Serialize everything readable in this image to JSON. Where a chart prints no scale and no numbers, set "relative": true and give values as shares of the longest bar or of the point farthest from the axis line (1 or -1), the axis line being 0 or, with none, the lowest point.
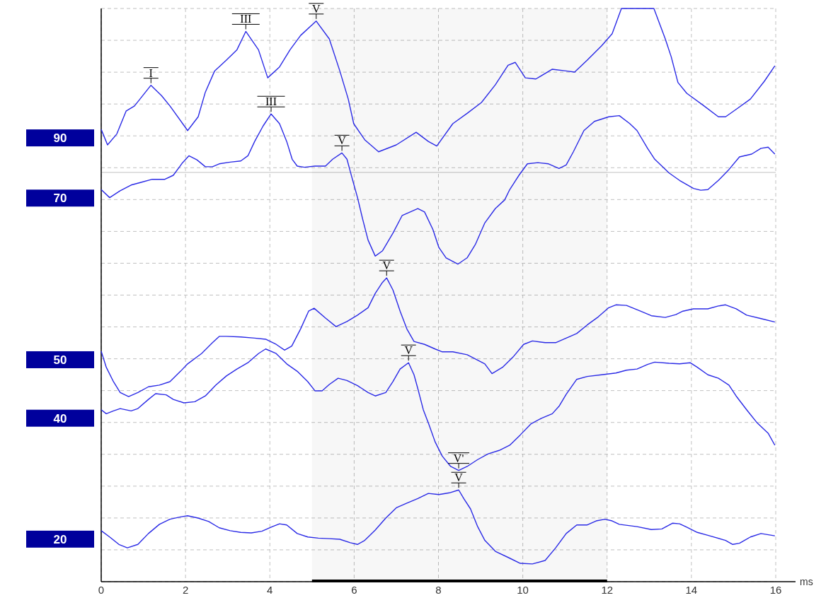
{
  "chart_data": {
    "type": "line",
    "relative": true,
    "xlabel": "ms",
    "xlim": [
      0,
      16
    ],
    "xticks": [
      0,
      2,
      4,
      6,
      8,
      10,
      12,
      14,
      16
    ],
    "grid": true,
    "legend": false,
    "marker": "none",
    "line_style": "solid",
    "series": [
      {
        "name": "90",
        "color": "#2a2ae6",
        "x": [
          0,
          0.15,
          0.37,
          0.59,
          0.79,
          1.18,
          1.43,
          1.63,
          2.05,
          2.3,
          2.47,
          2.69,
          2.97,
          3.22,
          3.43,
          3.73,
          3.95,
          4.23,
          4.48,
          4.73,
          5.1,
          5.41,
          5.66,
          5.86,
          5.99,
          6.25,
          6.58,
          7.0,
          7.47,
          7.76,
          7.96,
          8.34,
          8.68,
          9.02,
          9.35,
          9.65,
          9.82,
          10.06,
          10.31,
          10.7,
          11.03,
          11.23,
          11.53,
          11.87,
          12.12,
          12.34,
          13.11,
          13.38,
          13.52,
          13.68,
          13.89,
          14.3,
          14.64,
          14.81,
          15.06,
          15.4,
          15.73,
          15.98
        ],
        "values": [
          0.789,
          0.762,
          0.781,
          0.821,
          0.83,
          0.866,
          0.848,
          0.83,
          0.787,
          0.811,
          0.854,
          0.891,
          0.91,
          0.928,
          0.96,
          0.928,
          0.879,
          0.898,
          0.928,
          0.953,
          0.978,
          0.947,
          0.891,
          0.842,
          0.799,
          0.771,
          0.75,
          0.762,
          0.784,
          0.768,
          0.76,
          0.799,
          0.817,
          0.836,
          0.867,
          0.901,
          0.906,
          0.879,
          0.877,
          0.894,
          0.891,
          0.889,
          0.91,
          0.935,
          0.956,
          1,
          1,
          0.947,
          0.916,
          0.871,
          0.852,
          0.83,
          0.811,
          0.811,
          0.824,
          0.842,
          0.873,
          0.9
        ]
      },
      {
        "name": "70",
        "color": "#2a2ae6",
        "x": [
          0,
          0.2,
          0.45,
          0.71,
          0.96,
          1.21,
          1.51,
          1.71,
          1.93,
          2.08,
          2.27,
          2.47,
          2.64,
          2.8,
          3.06,
          3.31,
          3.48,
          3.64,
          3.84,
          4.03,
          4.23,
          4.4,
          4.53,
          4.65,
          4.82,
          5.07,
          5.32,
          5.49,
          5.71,
          5.83,
          5.94,
          6.08,
          6.2,
          6.33,
          6.5,
          6.67,
          6.92,
          7.14,
          7.51,
          7.67,
          7.87,
          8.01,
          8.18,
          8.46,
          8.68,
          8.88,
          9.1,
          9.35,
          9.57,
          9.69,
          9.91,
          10.11,
          10.36,
          10.61,
          10.86,
          11.03,
          11.2,
          11.45,
          11.7,
          12.04,
          12.29,
          12.54,
          12.71,
          12.96,
          13.13,
          13.47,
          13.72,
          14.05,
          14.22,
          14.39,
          14.64,
          14.89,
          15.14,
          15.43,
          15.65,
          15.82,
          15.98
        ],
        "values": [
          0.684,
          0.67,
          0.682,
          0.692,
          0.697,
          0.702,
          0.702,
          0.709,
          0.731,
          0.743,
          0.736,
          0.724,
          0.724,
          0.729,
          0.732,
          0.734,
          0.743,
          0.768,
          0.795,
          0.816,
          0.799,
          0.768,
          0.737,
          0.725,
          0.723,
          0.725,
          0.725,
          0.737,
          0.748,
          0.737,
          0.707,
          0.67,
          0.633,
          0.596,
          0.568,
          0.577,
          0.608,
          0.639,
          0.651,
          0.645,
          0.614,
          0.583,
          0.565,
          0.554,
          0.565,
          0.589,
          0.626,
          0.651,
          0.666,
          0.684,
          0.709,
          0.729,
          0.731,
          0.729,
          0.721,
          0.727,
          0.75,
          0.787,
          0.803,
          0.811,
          0.813,
          0.799,
          0.787,
          0.756,
          0.737,
          0.713,
          0.7,
          0.686,
          0.683,
          0.684,
          0.7,
          0.719,
          0.741,
          0.746,
          0.756,
          0.758,
          0.746
        ]
      },
      {
        "name": "50",
        "color": "#2a2ae6",
        "x": [
          0,
          0.12,
          0.29,
          0.45,
          0.65,
          0.87,
          1.12,
          1.38,
          1.63,
          1.88,
          2.05,
          2.38,
          2.64,
          2.8,
          2.97,
          3.31,
          3.64,
          3.9,
          4.15,
          4.35,
          4.52,
          4.73,
          4.92,
          5.05,
          5.32,
          5.57,
          5.83,
          6.08,
          6.33,
          6.5,
          6.67,
          6.77,
          6.92,
          7.09,
          7.25,
          7.42,
          7.67,
          7.92,
          8.09,
          8.34,
          8.68,
          9.1,
          9.27,
          9.52,
          9.77,
          10.02,
          10.23,
          10.53,
          10.78,
          11.03,
          11.28,
          11.53,
          11.79,
          12.04,
          12.21,
          12.46,
          12.79,
          13.05,
          13.38,
          13.63,
          13.8,
          14.05,
          14.39,
          14.64,
          14.81,
          15.06,
          15.31,
          15.65,
          15.98
        ],
        "values": [
          0.402,
          0.374,
          0.349,
          0.33,
          0.323,
          0.33,
          0.34,
          0.343,
          0.349,
          0.367,
          0.38,
          0.398,
          0.417,
          0.428,
          0.428,
          0.427,
          0.425,
          0.423,
          0.414,
          0.404,
          0.411,
          0.441,
          0.472,
          0.477,
          0.46,
          0.445,
          0.454,
          0.465,
          0.478,
          0.503,
          0.522,
          0.53,
          0.509,
          0.472,
          0.441,
          0.419,
          0.414,
          0.406,
          0.401,
          0.401,
          0.396,
          0.38,
          0.363,
          0.374,
          0.392,
          0.414,
          0.42,
          0.417,
          0.417,
          0.425,
          0.433,
          0.448,
          0.462,
          0.478,
          0.483,
          0.482,
          0.472,
          0.464,
          0.461,
          0.466,
          0.472,
          0.476,
          0.476,
          0.481,
          0.483,
          0.476,
          0.465,
          0.459,
          0.453
        ]
      },
      {
        "name": "40",
        "color": "#2a2ae6",
        "x": [
          0,
          0.12,
          0.29,
          0.45,
          0.71,
          0.87,
          1.12,
          1.29,
          1.54,
          1.71,
          1.96,
          2.22,
          2.47,
          2.72,
          2.97,
          3.22,
          3.48,
          3.73,
          3.9,
          4.15,
          4.4,
          4.65,
          4.9,
          5.07,
          5.24,
          5.41,
          5.62,
          5.83,
          6.08,
          6.33,
          6.5,
          6.75,
          6.92,
          7.09,
          7.29,
          7.42,
          7.51,
          7.64,
          7.77,
          7.92,
          8.09,
          8.29,
          8.48,
          8.68,
          8.93,
          9.18,
          9.44,
          9.69,
          9.94,
          10.19,
          10.44,
          10.7,
          10.86,
          11.03,
          11.28,
          11.53,
          11.87,
          12.21,
          12.46,
          12.71,
          12.96,
          13.13,
          13.47,
          13.72,
          13.97,
          14.14,
          14.39,
          14.64,
          14.89,
          15.06,
          15.31,
          15.56,
          15.82,
          15.98
        ],
        "values": [
          0.3,
          0.293,
          0.298,
          0.302,
          0.298,
          0.302,
          0.318,
          0.328,
          0.326,
          0.318,
          0.312,
          0.314,
          0.324,
          0.343,
          0.359,
          0.371,
          0.382,
          0.398,
          0.406,
          0.398,
          0.38,
          0.367,
          0.349,
          0.333,
          0.333,
          0.344,
          0.355,
          0.351,
          0.342,
          0.33,
          0.324,
          0.33,
          0.349,
          0.371,
          0.382,
          0.361,
          0.337,
          0.3,
          0.275,
          0.244,
          0.219,
          0.201,
          0.194,
          0.201,
          0.213,
          0.223,
          0.229,
          0.238,
          0.256,
          0.275,
          0.285,
          0.293,
          0.306,
          0.327,
          0.353,
          0.358,
          0.361,
          0.364,
          0.369,
          0.371,
          0.379,
          0.383,
          0.381,
          0.38,
          0.382,
          0.374,
          0.361,
          0.355,
          0.343,
          0.324,
          0.3,
          0.277,
          0.259,
          0.238
        ]
      },
      {
        "name": "20",
        "color": "#2a2ae6",
        "x": [
          0,
          0.2,
          0.42,
          0.62,
          0.87,
          1.12,
          1.38,
          1.63,
          1.88,
          2.05,
          2.3,
          2.55,
          2.8,
          3.06,
          3.31,
          3.56,
          3.81,
          4.06,
          4.23,
          4.4,
          4.65,
          4.9,
          5.15,
          5.41,
          5.66,
          5.91,
          6.08,
          6.25,
          6.5,
          6.75,
          7.0,
          7.25,
          7.51,
          7.76,
          8.01,
          8.26,
          8.48,
          8.6,
          8.76,
          8.93,
          9.1,
          9.35,
          9.69,
          9.94,
          10.23,
          10.53,
          10.78,
          11.03,
          11.28,
          11.53,
          11.74,
          11.95,
          12.12,
          12.29,
          12.71,
          13.05,
          13.3,
          13.55,
          13.72,
          13.89,
          14.14,
          14.39,
          14.81,
          14.98,
          15.14,
          15.4,
          15.65,
          15.98
        ],
        "values": [
          0.089,
          0.078,
          0.065,
          0.059,
          0.065,
          0.084,
          0.1,
          0.109,
          0.113,
          0.115,
          0.111,
          0.105,
          0.094,
          0.089,
          0.086,
          0.085,
          0.088,
          0.096,
          0.101,
          0.099,
          0.084,
          0.078,
          0.076,
          0.075,
          0.074,
          0.068,
          0.065,
          0.072,
          0.09,
          0.111,
          0.129,
          0.137,
          0.145,
          0.154,
          0.152,
          0.155,
          0.16,
          0.145,
          0.127,
          0.096,
          0.072,
          0.053,
          0.041,
          0.032,
          0.031,
          0.037,
          0.059,
          0.084,
          0.099,
          0.099,
          0.106,
          0.109,
          0.106,
          0.1,
          0.096,
          0.091,
          0.092,
          0.102,
          0.101,
          0.095,
          0.086,
          0.081,
          0.072,
          0.065,
          0.067,
          0.078,
          0.084,
          0.08
        ]
      }
    ],
    "annotations": [
      {
        "text": "I",
        "x": 1.18,
        "y": 0.866
      },
      {
        "text": "III",
        "x": 3.43,
        "y": 0.96
      },
      {
        "text": "V",
        "x": 5.1,
        "y": 0.978
      },
      {
        "text": "III",
        "x": 4.03,
        "y": 0.816
      },
      {
        "text": "V",
        "x": 5.71,
        "y": 0.748
      },
      {
        "text": "V",
        "x": 6.77,
        "y": 0.53
      },
      {
        "text": "V",
        "x": 7.29,
        "y": 0.382
      },
      {
        "text": "V'",
        "x": 8.48,
        "y": 0.194
      },
      {
        "text": "V",
        "x": 8.48,
        "y": 0.16
      }
    ],
    "ref_lines": [
      {
        "axis": "y",
        "value": 0.714,
        "color": "#c0c0c0",
        "line_style": "solid"
      }
    ],
    "bands": [
      {
        "axis": "x",
        "from": 5,
        "to": 12,
        "color": "#000000"
      }
    ]
  }
}
